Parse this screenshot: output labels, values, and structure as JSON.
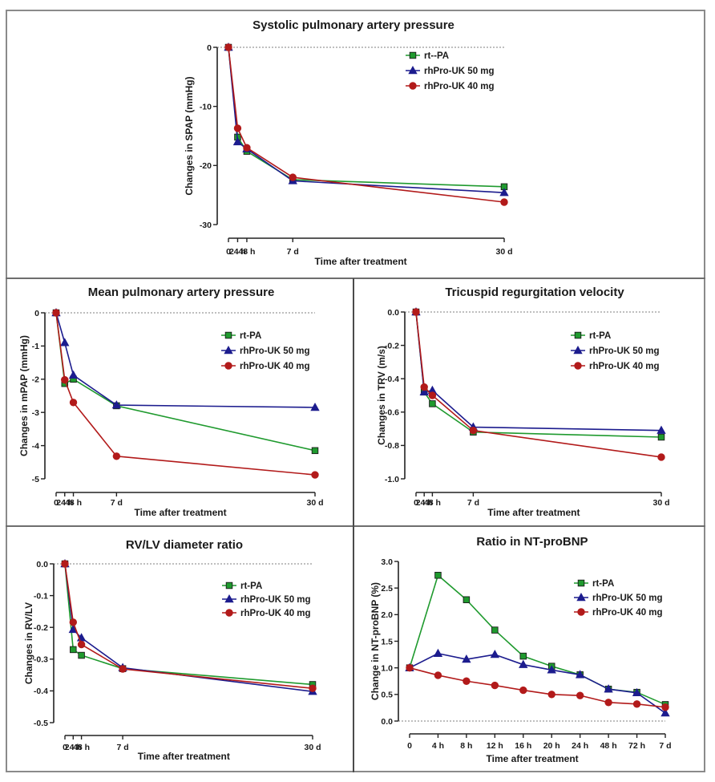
{
  "figure": {
    "series_colors": {
      "rtpa": "#1f9a2e",
      "uk50": "#1c1c8e",
      "uk40": "#b21a1a"
    },
    "marker_shapes": {
      "rtpa": "square",
      "uk50": "triangle",
      "uk40": "circle"
    }
  },
  "chart_data": [
    {
      "id": "spap",
      "type": "line",
      "title": "Systolic pulmonary artery pressure",
      "xlabel": "Time after treatment",
      "ylabel": "Changes in SPAP (mmHg)",
      "categories": [
        "0",
        "24 h",
        "48 h",
        "7 d",
        "30 d"
      ],
      "x_positions_days": [
        0,
        1,
        2,
        7,
        30
      ],
      "ylim": [
        -30,
        0
      ],
      "yticks": [
        0,
        -10,
        -20,
        -30
      ],
      "ytick_labels": [
        "0",
        "-10",
        "-20",
        "-30"
      ],
      "reference_line": 0,
      "legend_position": "top-right",
      "series": [
        {
          "key": "rtpa",
          "name": "rt--PA",
          "values": [
            0,
            -15.2,
            -17.6,
            -22.4,
            -23.6
          ]
        },
        {
          "key": "uk50",
          "name": "rhPro-UK 50 mg",
          "values": [
            0,
            -16.0,
            -17.2,
            -22.6,
            -24.6
          ]
        },
        {
          "key": "uk40",
          "name": "rhPro-UK 40 mg",
          "values": [
            0,
            -13.7,
            -17.0,
            -22.0,
            -26.2
          ]
        }
      ]
    },
    {
      "id": "mpap",
      "type": "line",
      "title": "Mean pulmonary artery pressure",
      "xlabel": "Time after treatment",
      "ylabel": "Changes in mPAP (mmHg)",
      "categories": [
        "0",
        "24 h",
        "48 h",
        "7 d",
        "30 d"
      ],
      "x_positions_days": [
        0,
        1,
        2,
        7,
        30
      ],
      "ylim": [
        -5,
        0
      ],
      "yticks": [
        0,
        -1,
        -2,
        -3,
        -4,
        -5
      ],
      "ytick_labels": [
        "0",
        "-1",
        "-2",
        "-3",
        "-4",
        "-5"
      ],
      "reference_line": 0,
      "legend_position": "top-right",
      "series": [
        {
          "key": "rtpa",
          "name": "rt-PA",
          "values": [
            0,
            -2.13,
            -2.0,
            -2.8,
            -4.15
          ]
        },
        {
          "key": "uk50",
          "name": "rhPro-UK 50 mg",
          "values": [
            0,
            -0.9,
            -1.88,
            -2.78,
            -2.85
          ]
        },
        {
          "key": "uk40",
          "name": "rhPro-UK 40 mg",
          "values": [
            0,
            -2.02,
            -2.7,
            -4.32,
            -4.88
          ]
        }
      ]
    },
    {
      "id": "trv",
      "type": "line",
      "title": "Tricuspid regurgitation velocity",
      "xlabel": "Time after treatment",
      "ylabel": "Changes in TRV (m/s)",
      "categories": [
        "0",
        "24 h",
        "48 h",
        "7 d",
        "30 d"
      ],
      "x_positions_days": [
        0,
        1,
        2,
        7,
        30
      ],
      "ylim": [
        -1.0,
        0
      ],
      "yticks": [
        0,
        -0.2,
        -0.4,
        -0.6,
        -0.8,
        -1.0
      ],
      "ytick_labels": [
        "0.0",
        "-0.2",
        "-0.4",
        "-0.6",
        "-0.8",
        "-1.0"
      ],
      "reference_line": 0,
      "legend_position": "top-right",
      "series": [
        {
          "key": "rtpa",
          "name": "rt-PA",
          "values": [
            0,
            -0.48,
            -0.55,
            -0.72,
            -0.75
          ]
        },
        {
          "key": "uk50",
          "name": "rhPro-UK 50 mg",
          "values": [
            0,
            -0.48,
            -0.47,
            -0.69,
            -0.71
          ]
        },
        {
          "key": "uk40",
          "name": "rhPro-UK 40 mg",
          "values": [
            0,
            -0.45,
            -0.5,
            -0.71,
            -0.87
          ]
        }
      ]
    },
    {
      "id": "rvlv",
      "type": "line",
      "title": "RV/LV diameter ratio",
      "xlabel": "Time after treatment",
      "ylabel": "Changes in RV/LV",
      "categories": [
        "0",
        "24 h",
        "48 h",
        "7 d",
        "30 d"
      ],
      "x_positions_days": [
        0,
        1,
        2,
        7,
        30
      ],
      "ylim": [
        -0.5,
        0
      ],
      "yticks": [
        0,
        -0.1,
        -0.2,
        -0.3,
        -0.4,
        -0.5
      ],
      "ytick_labels": [
        "0.0",
        "-0.1",
        "-0.2",
        "-0.3",
        "-0.4",
        "-0.5"
      ],
      "reference_line": 0,
      "legend_position": "top-right",
      "series": [
        {
          "key": "rtpa",
          "name": "rt-PA",
          "values": [
            0,
            -0.27,
            -0.288,
            -0.33,
            -0.38
          ]
        },
        {
          "key": "uk50",
          "name": "rhPro-UK 50 mg",
          "values": [
            0,
            -0.207,
            -0.233,
            -0.327,
            -0.402
          ]
        },
        {
          "key": "uk40",
          "name": "rhPro-UK 40 mg",
          "values": [
            0,
            -0.184,
            -0.254,
            -0.331,
            -0.392
          ]
        }
      ]
    },
    {
      "id": "ntprobnp",
      "type": "line",
      "title": "Ratio in NT-proBNP",
      "xlabel": "Time after treatment",
      "ylabel": "Change in NT-proBNP (%)",
      "categories": [
        "0",
        "4 h",
        "8 h",
        "12 h",
        "16 h",
        "20 h",
        "24 h",
        "48 h",
        "72 h",
        "7 d"
      ],
      "x_positions_days": [
        0,
        1,
        2,
        3,
        4,
        5,
        6,
        7,
        8,
        9
      ],
      "ylim": [
        0,
        3.0
      ],
      "yticks": [
        0,
        0.5,
        1.0,
        1.5,
        2.0,
        2.5,
        3.0
      ],
      "ytick_labels": [
        "0.0",
        "0.5",
        "1.0",
        "1.5",
        "2.0",
        "2.5",
        "3.0"
      ],
      "reference_line": 0,
      "legend_position": "top-right",
      "series": [
        {
          "key": "rtpa",
          "name": "rt-PA",
          "values": [
            1.0,
            2.74,
            2.28,
            1.71,
            1.22,
            1.03,
            0.87,
            0.6,
            0.54,
            0.31
          ]
        },
        {
          "key": "uk50",
          "name": "rhPro-UK 50 mg",
          "values": [
            1.0,
            1.27,
            1.16,
            1.25,
            1.06,
            0.96,
            0.87,
            0.6,
            0.53,
            0.15
          ]
        },
        {
          "key": "uk40",
          "name": "rhPro-UK 40 mg",
          "values": [
            1.0,
            0.86,
            0.75,
            0.67,
            0.58,
            0.5,
            0.48,
            0.35,
            0.32,
            0.26
          ]
        }
      ]
    }
  ]
}
